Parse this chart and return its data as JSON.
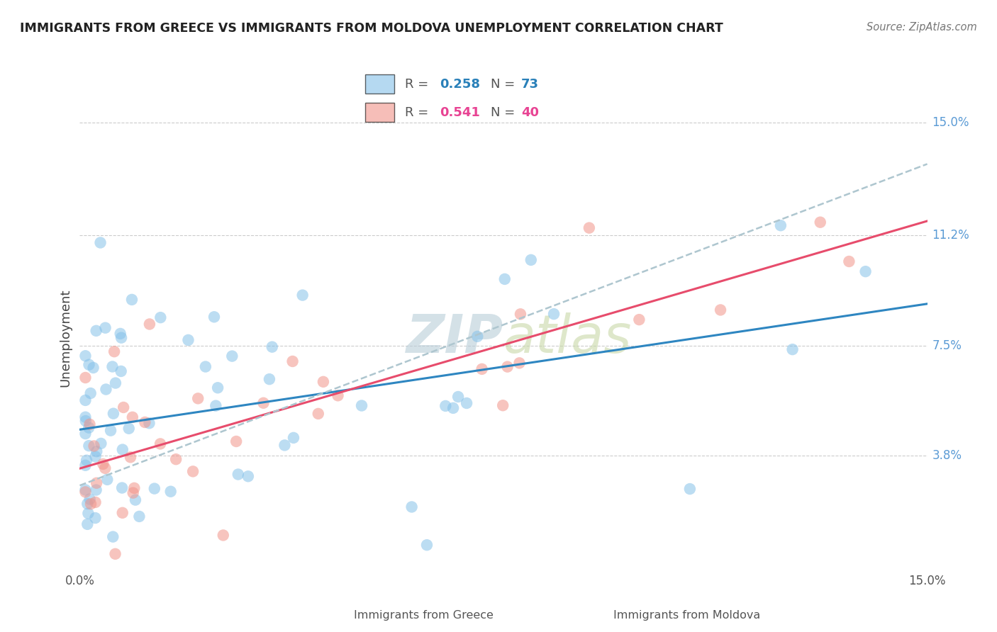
{
  "title": "IMMIGRANTS FROM GREECE VS IMMIGRANTS FROM MOLDOVA UNEMPLOYMENT CORRELATION CHART",
  "source": "Source: ZipAtlas.com",
  "ylabel": "Unemployment",
  "xlim": [
    0.0,
    15.0
  ],
  "ylim": [
    0.0,
    15.5
  ],
  "yticks": [
    3.8,
    7.5,
    11.2,
    15.0
  ],
  "xtick_labels": [
    "0.0%",
    "15.0%"
  ],
  "xtick_positions": [
    0.0,
    15.0
  ],
  "greece_R": 0.258,
  "greece_N": 73,
  "moldova_R": 0.541,
  "moldova_N": 40,
  "greece_color": "#85C1E9",
  "moldova_color": "#F1948A",
  "greece_line_color": "#2E86C1",
  "moldova_line_color": "#E74C6C",
  "dashed_line_color": "#AEC6CF",
  "watermark": "ZIPatlas",
  "watermark_zip_color": "#B0C8D8",
  "watermark_atlas_color": "#C8D8A0",
  "background_color": "#FFFFFF",
  "legend_box_color": "#FFFFFF",
  "legend_border_color": "#AAAAAA",
  "greece_R_color": "#2980B9",
  "greece_N_color": "#2980B9",
  "moldova_R_color": "#E84393",
  "moldova_N_color": "#E84393",
  "ytick_color": "#5B9BD5",
  "title_color": "#222222",
  "source_color": "#777777",
  "ylabel_color": "#444444",
  "bottom_label_color": "#555555"
}
